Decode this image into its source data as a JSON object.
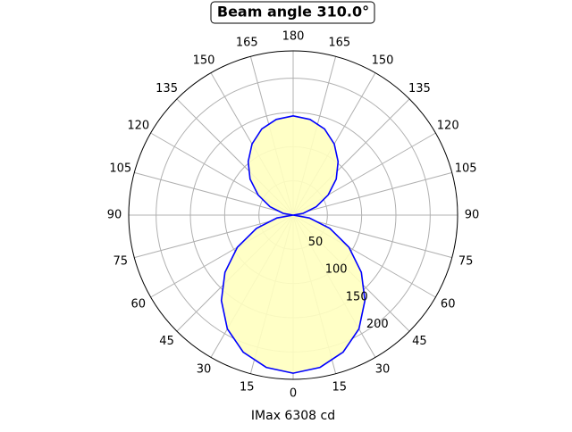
{
  "chart_data": {
    "type": "polar",
    "title": "Beam angle 310.0°",
    "xlabel": "IMax 6308 cd",
    "theta": [
      0,
      10,
      20,
      30,
      40,
      50,
      60,
      70,
      80,
      90,
      100,
      110,
      120,
      130,
      140,
      150,
      160,
      170,
      180,
      190,
      200,
      210,
      220,
      230,
      240,
      250,
      260,
      270,
      280,
      290,
      300,
      310,
      320,
      330,
      340,
      350,
      360
    ],
    "values": [
      231,
      226,
      213,
      192,
      163,
      130,
      94,
      57,
      24,
      0,
      15,
      36,
      59,
      82,
      102,
      120,
      134,
      142,
      145,
      142,
      134,
      120,
      102,
      82,
      59,
      36,
      15,
      0,
      24,
      57,
      94,
      130,
      163,
      192,
      213,
      226,
      231
    ],
    "color": "#0000ff",
    "fill": "#ffffc0",
    "ylim": [
      0,
      240
    ],
    "yticks": [
      50,
      100,
      150,
      200
    ],
    "thetaticks": [
      0,
      15,
      30,
      45,
      60,
      75,
      90,
      105,
      120,
      135,
      150,
      165,
      180,
      {
        "value": 195,
        "label": "165"
      },
      {
        "value": 210,
        "label": "150"
      },
      {
        "value": 225,
        "label": "135"
      },
      {
        "value": 240,
        "label": "120"
      },
      {
        "value": 255,
        "label": "105"
      },
      {
        "value": 270,
        "label": "90"
      },
      {
        "value": 285,
        "label": "75"
      },
      {
        "value": 300,
        "label": "60"
      },
      {
        "value": 315,
        "label": "45"
      },
      {
        "value": 330,
        "label": "30"
      },
      {
        "value": 345,
        "label": "15"
      }
    ],
    "grid": true
  }
}
